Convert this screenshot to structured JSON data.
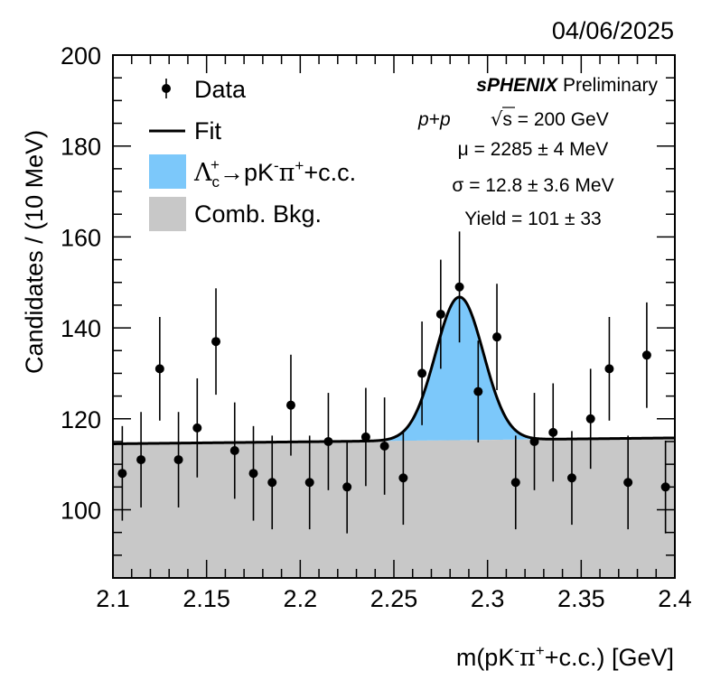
{
  "date": "04/06/2025",
  "info": {
    "experiment": "sPHENIX",
    "status": " Preliminary",
    "system_p1": "p",
    "system_plus": "+",
    "system_p2": "p",
    "sqrt_symbol": "√",
    "energy_s": "s",
    "energy_value": " = 200 GeV",
    "mu_line": "μ = 2285 ± 4 MeV",
    "sigma_line": "σ = 12.8 ± 3.6 MeV",
    "yield_line": "Yield = 101 ± 33"
  },
  "legend": {
    "data_label": "Data",
    "fit_label": "Fit",
    "signal_lambda": "Λ",
    "signal_sub": "c",
    "signal_sup": "+",
    "signal_arrow": "→pK",
    "signal_minus": "-",
    "signal_pi": "π",
    "signal_pi_sup": "+",
    "signal_cc": "+c.c.",
    "bkg_label": "Comb. Bkg."
  },
  "xaxis": {
    "title_pre": "m(pK",
    "title_minus": "-",
    "title_pi": "π",
    "title_plus": "+",
    "title_post": "+c.c.) [GeV]"
  },
  "yaxis": {
    "title": "Candidates / (10 MeV)"
  },
  "colors": {
    "signal": "#7cc8fa",
    "background": "#c8c8c8",
    "fit": "#000000",
    "data": "#000000"
  },
  "chart_data": {
    "type": "scatter",
    "xlim": [
      2.1,
      2.4
    ],
    "ylim": [
      85,
      200
    ],
    "x_ticks": [
      "2.1",
      "2.15",
      "2.2",
      "2.25",
      "2.3",
      "2.35",
      "2.4"
    ],
    "x_tick_values": [
      2.1,
      2.15,
      2.2,
      2.25,
      2.3,
      2.35,
      2.4
    ],
    "y_ticks": [
      "100",
      "120",
      "140",
      "160",
      "180",
      "200"
    ],
    "y_tick_values": [
      100,
      120,
      140,
      160,
      180,
      200
    ],
    "series": [
      {
        "name": "Data",
        "x": [
          2.105,
          2.115,
          2.125,
          2.135,
          2.145,
          2.155,
          2.165,
          2.175,
          2.185,
          2.195,
          2.205,
          2.215,
          2.225,
          2.235,
          2.245,
          2.255,
          2.265,
          2.275,
          2.285,
          2.295,
          2.305,
          2.315,
          2.325,
          2.335,
          2.345,
          2.355,
          2.365,
          2.375,
          2.385,
          2.395
        ],
        "y": [
          108,
          111,
          131,
          111,
          118,
          137,
          113,
          108,
          106,
          123,
          106,
          115,
          105,
          116,
          114,
          107,
          130,
          143,
          149,
          126,
          138,
          106,
          115,
          117,
          107,
          120,
          131,
          106,
          134,
          105
        ],
        "err": [
          10.4,
          10.5,
          11.4,
          10.5,
          10.9,
          11.7,
          10.6,
          10.4,
          10.3,
          11.1,
          10.3,
          10.7,
          10.2,
          10.8,
          10.7,
          10.3,
          11.4,
          12.0,
          12.2,
          11.2,
          11.7,
          10.3,
          10.7,
          10.8,
          10.3,
          11.0,
          11.4,
          10.3,
          11.6,
          10.2
        ]
      }
    ],
    "fit": {
      "name": "Fit",
      "background": {
        "y_at_xmin": 114.5,
        "y_at_xmax": 115.8
      },
      "signal": {
        "mean": 2.285,
        "sigma": 0.0128,
        "yield": 101,
        "bin_width": 0.01
      }
    }
  }
}
